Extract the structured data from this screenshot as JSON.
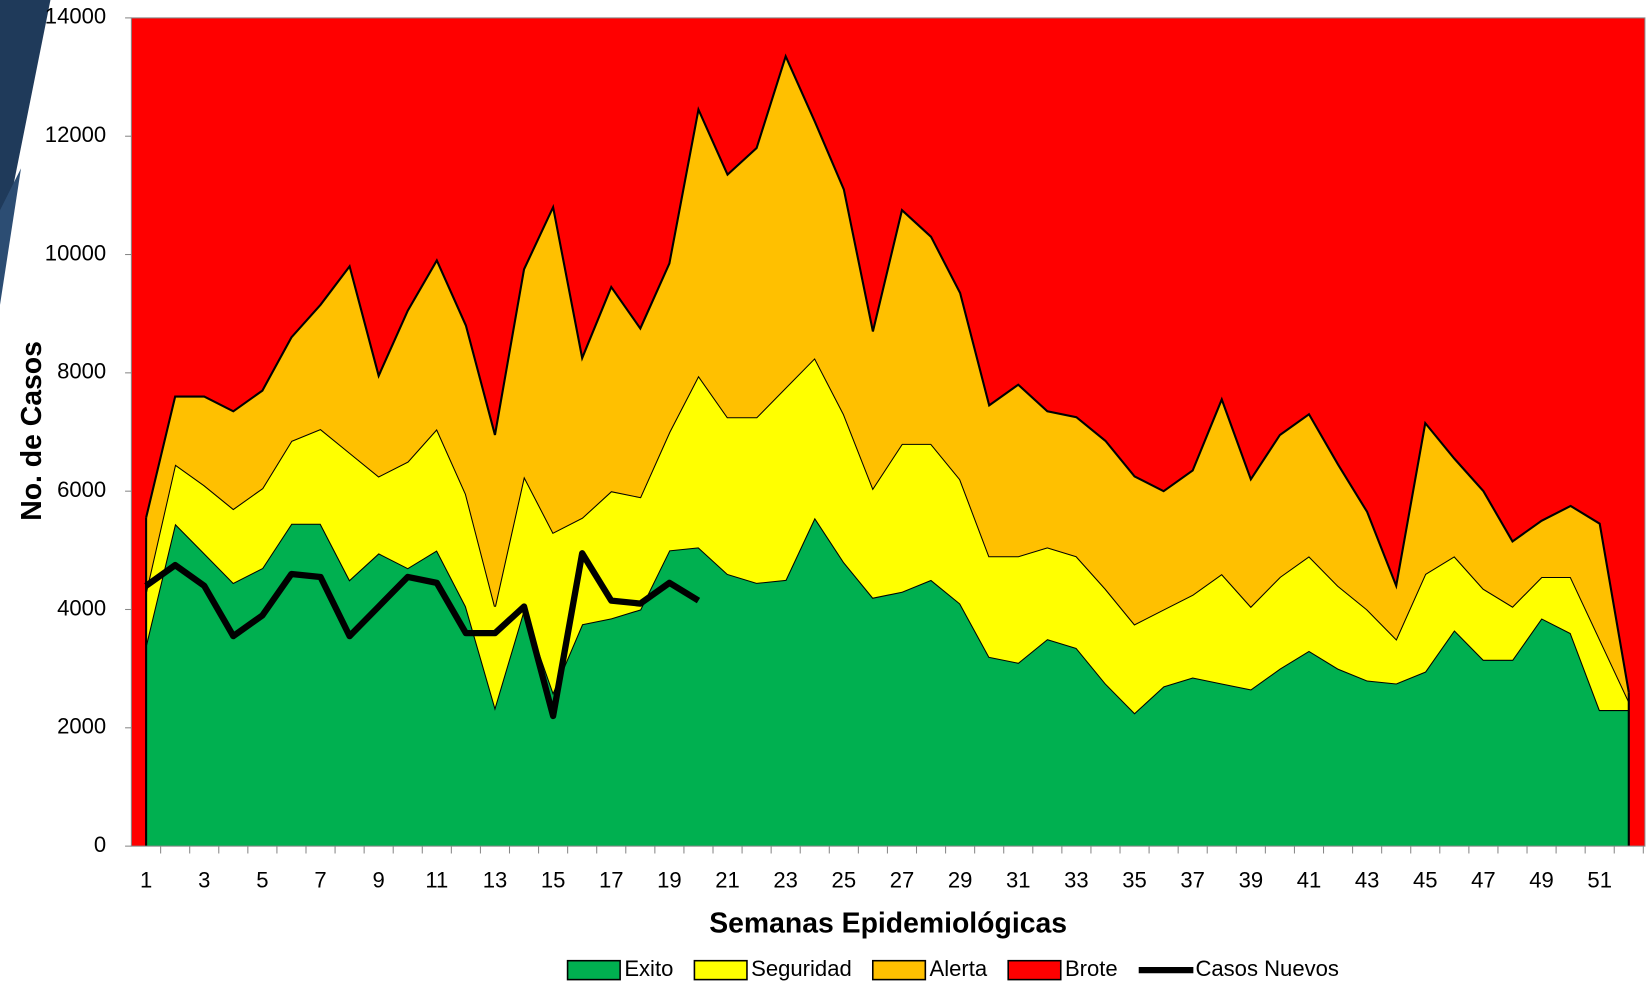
{
  "chart_data": {
    "type": "area",
    "x_label": "Semanas Epidemiológicas",
    "y_label": "No. de Casos",
    "categories": [
      1,
      null,
      3,
      null,
      5,
      null,
      7,
      null,
      9,
      null,
      11,
      null,
      13,
      null,
      15,
      null,
      17,
      null,
      19,
      null,
      21,
      null,
      23,
      null,
      25,
      null,
      27,
      null,
      29,
      null,
      31,
      null,
      33,
      null,
      35,
      null,
      37,
      null,
      39,
      null,
      41,
      null,
      43,
      null,
      45,
      null,
      47,
      null,
      49,
      null,
      51,
      null
    ],
    "ylim": [
      0,
      14000
    ],
    "yticks": [
      0,
      2000,
      4000,
      6000,
      8000,
      10000,
      12000,
      14000
    ],
    "series": [
      {
        "name": "Exito",
        "color": "#00b050",
        "values": [
          3400,
          5450,
          4950,
          4450,
          4700,
          5450,
          5450,
          4500,
          4950,
          4700,
          5000,
          4050,
          2350,
          4000,
          2600,
          3750,
          3850,
          4000,
          5000,
          5050,
          4600,
          4450,
          4500,
          5550,
          4800,
          4200,
          4300,
          4500,
          4100,
          3200,
          3100,
          3500,
          3350,
          2750,
          2250,
          2700,
          2850,
          2750,
          2650,
          3000,
          3300,
          3000,
          2800,
          2750,
          2950,
          3650,
          3150,
          3150,
          3850,
          3600,
          2300,
          2300
        ]
      },
      {
        "name": "Seguridad",
        "color": "#ffff00",
        "values": [
          900,
          1000,
          1150,
          1250,
          1350,
          1400,
          1600,
          2150,
          1300,
          1800,
          2050,
          1900,
          1700,
          2250,
          2700,
          1800,
          2150,
          1900,
          2000,
          2900,
          2650,
          2800,
          3250,
          2700,
          2500,
          1850,
          2500,
          2300,
          2100,
          1700,
          1800,
          1550,
          1550,
          1600,
          1500,
          1300,
          1400,
          1850,
          1400,
          1550,
          1600,
          1400,
          1200,
          750,
          1650,
          1250,
          1200,
          900,
          700,
          950,
          1200,
          150
        ]
      },
      {
        "name": "Alerta",
        "color": "#ffc000",
        "values": [
          1250,
          1150,
          1500,
          1650,
          1650,
          1750,
          2100,
          3150,
          1700,
          2550,
          2850,
          2850,
          2900,
          3500,
          5500,
          2700,
          3450,
          2850,
          2850,
          4500,
          4100,
          4550,
          5600,
          4000,
          3800,
          2650,
          3950,
          3500,
          3150,
          2550,
          2900,
          2300,
          2350,
          2500,
          2500,
          2000,
          2100,
          2950,
          2150,
          2400,
          2400,
          2050,
          1650,
          900,
          2550,
          1650,
          1650,
          1100,
          950,
          1200,
          1950,
          150
        ]
      },
      {
        "name": "Brote",
        "color": "#ff0000"
      },
      {
        "name": "Casos Nuevos",
        "type": "line",
        "color": "#000000",
        "values": [
          4400,
          4750,
          4400,
          3550,
          3900,
          4600,
          4550,
          3550,
          4050,
          4550,
          4450,
          3600,
          3600,
          4050,
          2200,
          4950,
          4150,
          4100,
          4450,
          4150,
          null,
          null,
          null,
          null,
          null,
          null,
          null,
          null,
          null,
          null,
          null,
          null,
          null,
          null,
          null,
          null,
          null,
          null,
          null,
          null,
          null,
          null,
          null,
          null,
          null,
          null,
          null,
          null,
          null,
          null,
          null,
          null
        ]
      }
    ]
  }
}
